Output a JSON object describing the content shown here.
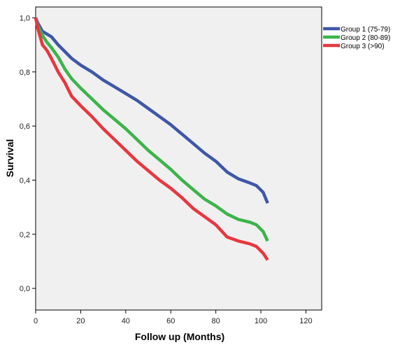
{
  "chart_data": {
    "type": "line",
    "title": "",
    "xlabel": "Follow up (Months)",
    "ylabel": "Survival",
    "xlim": [
      0,
      127
    ],
    "ylim": [
      -0.08,
      1.04
    ],
    "x_ticks": [
      0,
      20,
      40,
      60,
      80,
      100,
      120
    ],
    "x_tick_labels": [
      "0",
      "20",
      "40",
      "60",
      "80",
      "100",
      "120"
    ],
    "y_ticks": [
      0.0,
      0.2,
      0.4,
      0.6,
      0.8,
      1.0
    ],
    "y_tick_labels": [
      "0,0",
      "0,2",
      "0,4",
      "0,6",
      "0,8",
      "1,0"
    ],
    "grid": false,
    "legend_position": "outside-top-right",
    "series": [
      {
        "name": "Group 1 (75-79)",
        "color": "#3e57a8",
        "points": [
          [
            0,
            1.0
          ],
          [
            1,
            0.98
          ],
          [
            3,
            0.95
          ],
          [
            5,
            0.94
          ],
          [
            7,
            0.93
          ],
          [
            10,
            0.9
          ],
          [
            13,
            0.875
          ],
          [
            16,
            0.85
          ],
          [
            20,
            0.825
          ],
          [
            25,
            0.8
          ],
          [
            30,
            0.77
          ],
          [
            35,
            0.745
          ],
          [
            40,
            0.72
          ],
          [
            45,
            0.695
          ],
          [
            50,
            0.665
          ],
          [
            55,
            0.635
          ],
          [
            60,
            0.605
          ],
          [
            65,
            0.57
          ],
          [
            70,
            0.535
          ],
          [
            75,
            0.5
          ],
          [
            80,
            0.47
          ],
          [
            85,
            0.43
          ],
          [
            90,
            0.405
          ],
          [
            95,
            0.39
          ],
          [
            98,
            0.38
          ],
          [
            101,
            0.355
          ],
          [
            103,
            0.315
          ]
        ]
      },
      {
        "name": "Group 2 (80-89)",
        "color": "#3cb44a",
        "points": [
          [
            0,
            1.0
          ],
          [
            1,
            0.97
          ],
          [
            3,
            0.935
          ],
          [
            5,
            0.91
          ],
          [
            7,
            0.89
          ],
          [
            10,
            0.855
          ],
          [
            13,
            0.81
          ],
          [
            16,
            0.775
          ],
          [
            20,
            0.74
          ],
          [
            25,
            0.7
          ],
          [
            30,
            0.66
          ],
          [
            35,
            0.625
          ],
          [
            40,
            0.59
          ],
          [
            45,
            0.55
          ],
          [
            50,
            0.51
          ],
          [
            55,
            0.475
          ],
          [
            60,
            0.44
          ],
          [
            65,
            0.4
          ],
          [
            70,
            0.365
          ],
          [
            75,
            0.33
          ],
          [
            80,
            0.305
          ],
          [
            85,
            0.275
          ],
          [
            90,
            0.255
          ],
          [
            95,
            0.245
          ],
          [
            98,
            0.235
          ],
          [
            101,
            0.21
          ],
          [
            103,
            0.175
          ]
        ]
      },
      {
        "name": "Group 3 (>90)",
        "color": "#e8373f",
        "points": [
          [
            0,
            1.0
          ],
          [
            1,
            0.96
          ],
          [
            3,
            0.9
          ],
          [
            5,
            0.88
          ],
          [
            7,
            0.85
          ],
          [
            10,
            0.8
          ],
          [
            13,
            0.76
          ],
          [
            16,
            0.71
          ],
          [
            20,
            0.675
          ],
          [
            25,
            0.635
          ],
          [
            30,
            0.59
          ],
          [
            35,
            0.55
          ],
          [
            40,
            0.51
          ],
          [
            45,
            0.47
          ],
          [
            50,
            0.435
          ],
          [
            55,
            0.4
          ],
          [
            60,
            0.37
          ],
          [
            65,
            0.335
          ],
          [
            70,
            0.295
          ],
          [
            75,
            0.265
          ],
          [
            80,
            0.235
          ],
          [
            85,
            0.19
          ],
          [
            90,
            0.175
          ],
          [
            95,
            0.165
          ],
          [
            98,
            0.155
          ],
          [
            101,
            0.13
          ],
          [
            103,
            0.105
          ]
        ]
      }
    ]
  }
}
